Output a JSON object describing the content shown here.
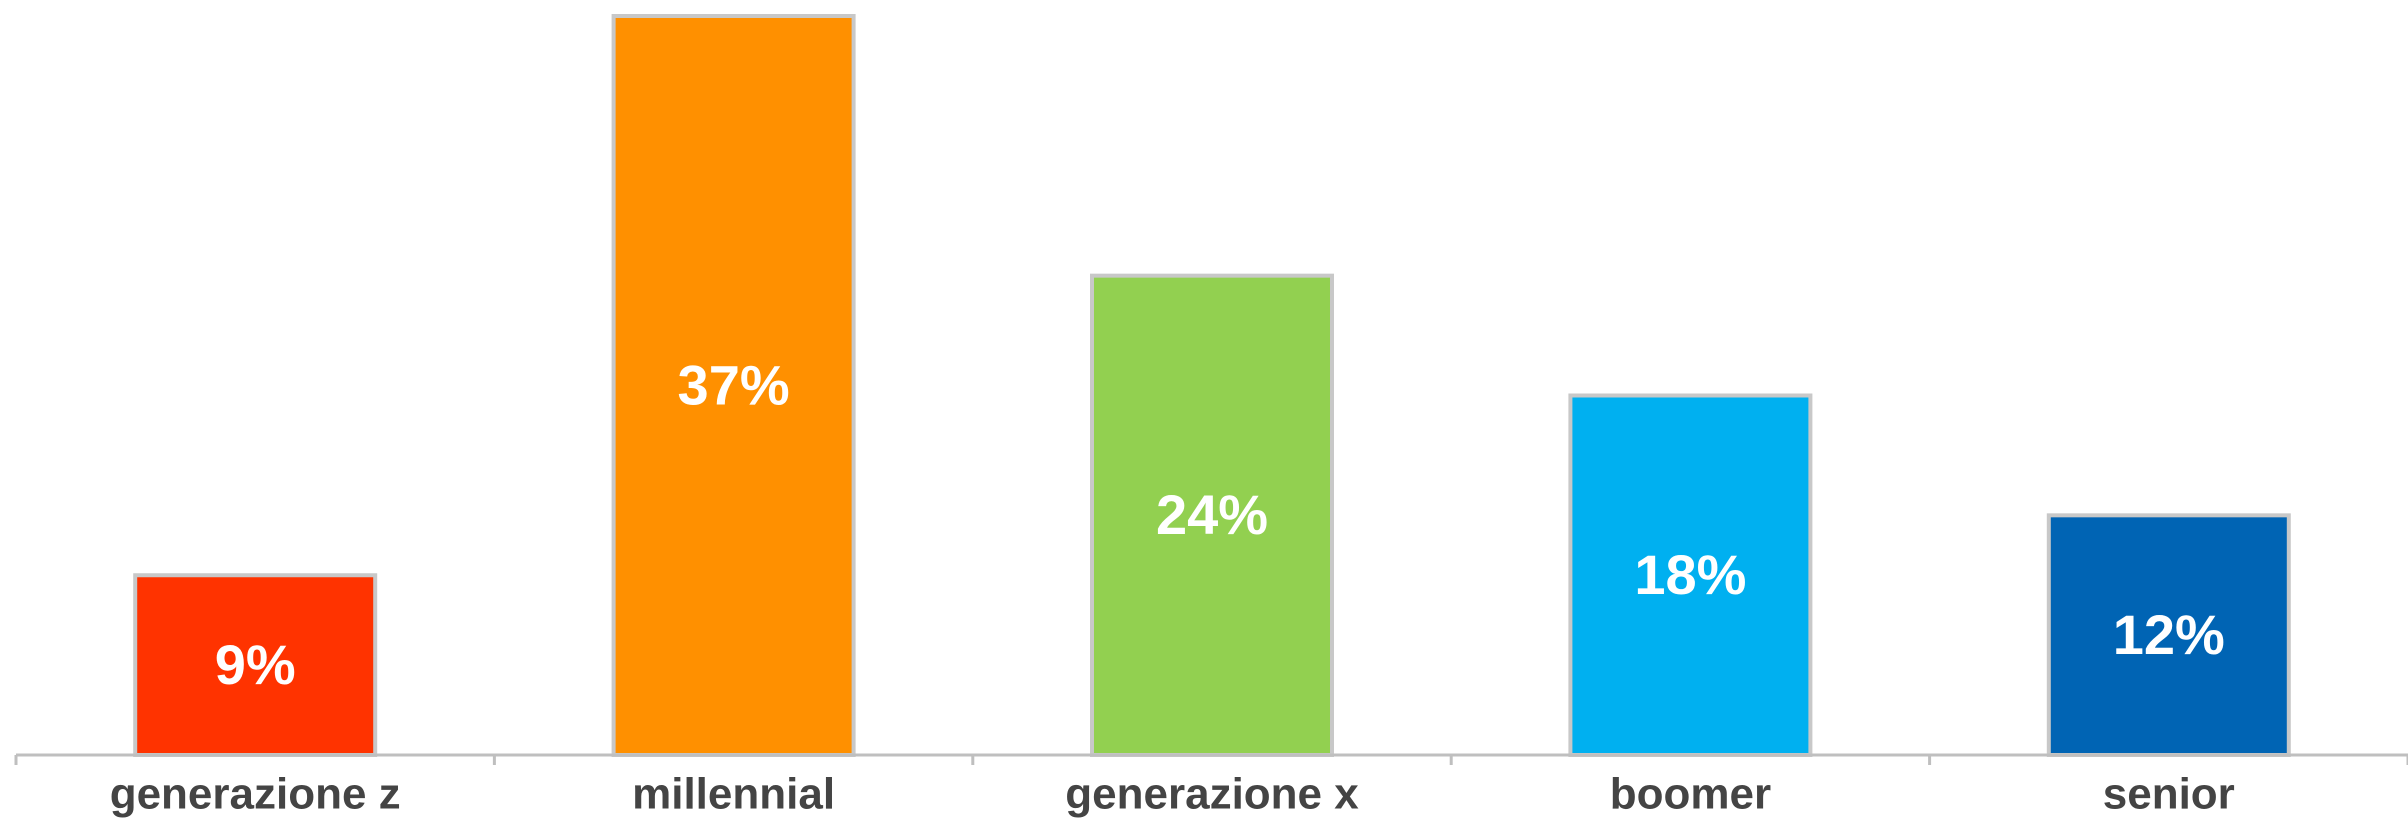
{
  "chart_data": {
    "type": "bar",
    "categories": [
      "generazione z",
      "millennial",
      "generazione x",
      "boomer",
      "senior"
    ],
    "values": [
      9,
      37,
      24,
      18,
      12
    ],
    "value_labels": [
      "9%",
      "37%",
      "24%",
      "18%",
      "12%"
    ],
    "colors": [
      "#ff3300",
      "#ff9000",
      "#92d050",
      "#00b0f0",
      "#0064b4"
    ],
    "title": "",
    "xlabel": "",
    "ylabel": "",
    "ylim": [
      0,
      37
    ],
    "grid": false,
    "legend": "none"
  }
}
